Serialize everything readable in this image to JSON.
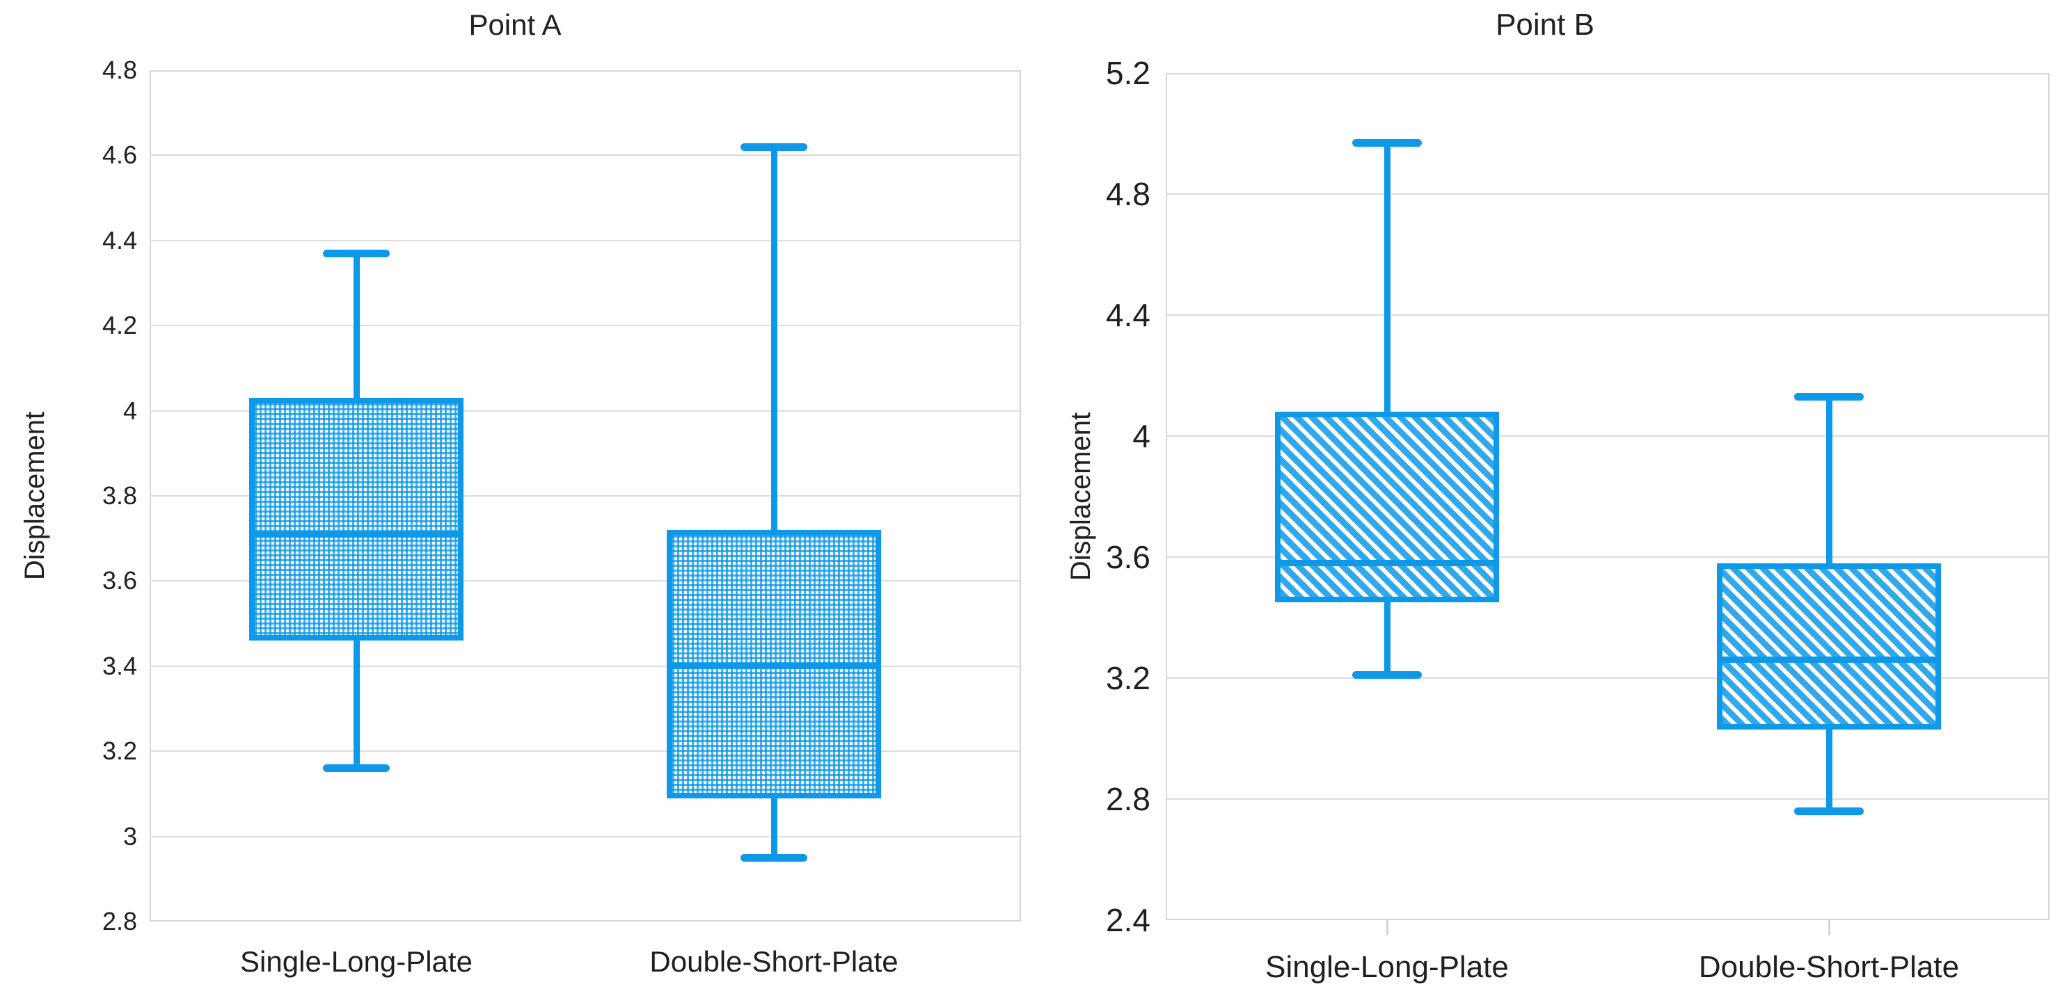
{
  "colors": {
    "box_blue": "#0D99E8",
    "gridline": "#DCDCDC",
    "plot_border": "#D6D6D6",
    "text": "#1F1F1F"
  },
  "chart_data": [
    {
      "type": "boxplot",
      "title": "Point A",
      "ylabel": "Displacement",
      "categories": [
        "Single-Long-Plate",
        "Double-Short-Plate"
      ],
      "y_axis": {
        "min": 2.8,
        "max": 4.8,
        "step": 0.2,
        "tick_labels": [
          "4.8",
          "4.6",
          "4.4",
          "4.2",
          "4",
          "3.8",
          "3.6",
          "3.4",
          "3.2",
          "3",
          "2.8"
        ]
      },
      "grid": "horizontal-only",
      "legend": "none",
      "fill_pattern": "crosshatch-grid",
      "series": [
        {
          "name": "Single-Long-Plate",
          "whisker_low": 3.16,
          "q1": 3.46,
          "median": 3.71,
          "q3": 4.03,
          "whisker_high": 4.37
        },
        {
          "name": "Double-Short-Plate",
          "whisker_low": 2.95,
          "q1": 3.09,
          "median": 3.4,
          "q3": 3.72,
          "whisker_high": 4.62
        }
      ]
    },
    {
      "type": "boxplot",
      "title": "Point B",
      "ylabel": "Displacement",
      "categories": [
        "Single-Long-Plate",
        "Double-Short-Plate"
      ],
      "y_axis": {
        "min": 2.4,
        "max": 5.2,
        "step": 0.4,
        "tick_labels": [
          "5.2",
          "4.8",
          "4.4",
          "4",
          "3.6",
          "3.2",
          "2.8",
          "2.4"
        ]
      },
      "grid": "horizontal-only",
      "legend": "none",
      "fill_pattern": "diagonal-stripes",
      "series": [
        {
          "name": "Single-Long-Plate",
          "whisker_low": 3.21,
          "q1": 3.45,
          "median": 3.58,
          "q3": 4.08,
          "whisker_high": 4.97
        },
        {
          "name": "Double-Short-Plate",
          "whisker_low": 2.76,
          "q1": 3.03,
          "median": 3.26,
          "q3": 3.58,
          "whisker_high": 4.13
        }
      ]
    }
  ]
}
